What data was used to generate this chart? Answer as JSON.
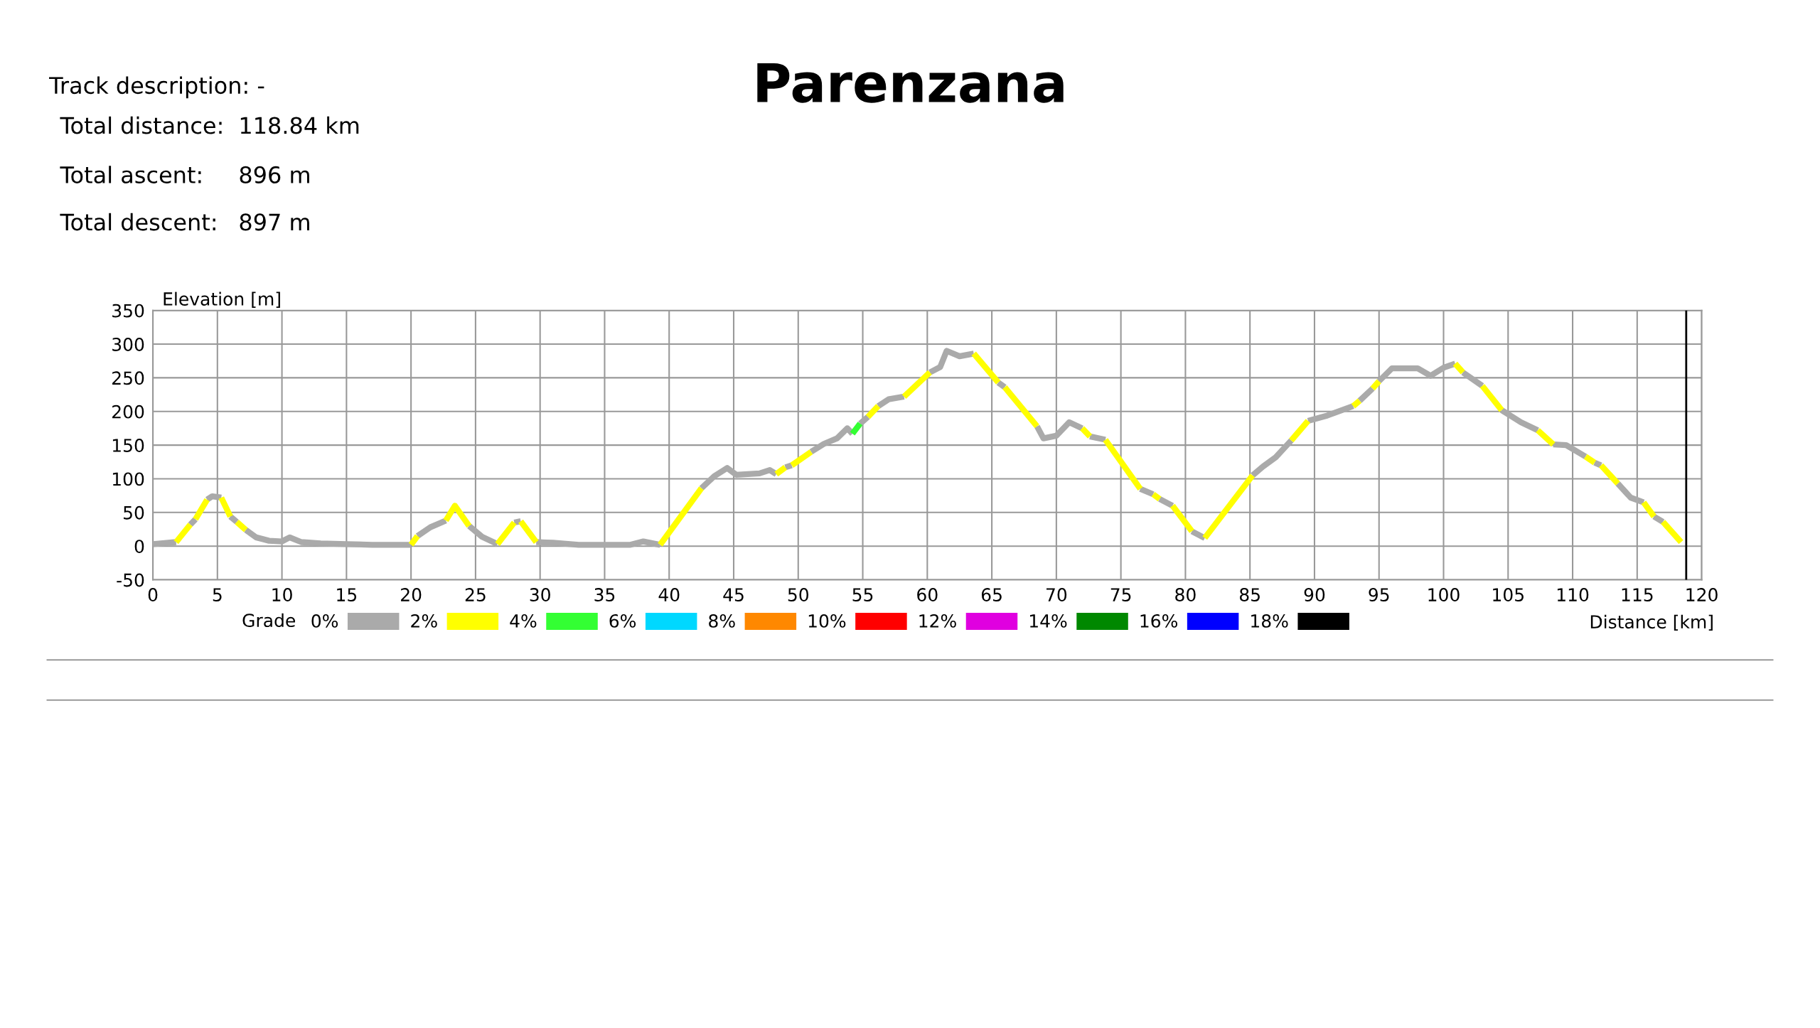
{
  "chart_data": {
    "type": "line",
    "title": "Parenzana",
    "xlabel": "Distance [km]",
    "ylabel": "Elevation [m]",
    "legend_title": "Grade",
    "annotations": [
      "Track description: -",
      "Total distance:",
      "118.84 km",
      "Total ascent:",
      "896 m",
      "Total descent:",
      "897 m"
    ],
    "xlim": [
      0,
      120
    ],
    "xticks": [
      0,
      5,
      10,
      15,
      20,
      25,
      30,
      35,
      40,
      45,
      50,
      55,
      60,
      65,
      70,
      75,
      80,
      85,
      90,
      95,
      100,
      105,
      110,
      115,
      120
    ],
    "ylim": [
      -50,
      350
    ],
    "yticks": [
      -50,
      0,
      50,
      100,
      150,
      200,
      250,
      300,
      350
    ],
    "grid": true,
    "legend": "bottom",
    "line_style": "solid",
    "marker": "none",
    "ref_lines": [
      {
        "axis": "x",
        "value": 118.8,
        "color": "#000000"
      }
    ],
    "series": [
      {
        "name": "0%",
        "color": "#aaaaaa",
        "x": [
          0,
          1.8,
          null,
          2.9,
          3.3,
          null,
          4.2,
          4.6,
          5.3,
          null,
          6.0,
          6.5,
          null,
          7.2,
          8,
          9,
          10,
          10.6,
          11.5,
          13,
          15,
          17,
          20,
          null,
          20.5,
          21.5,
          22.7,
          null,
          24.5,
          25.5,
          26.7,
          null,
          28,
          28.5,
          null,
          29.7,
          31,
          33,
          37,
          38,
          39.3,
          null,
          42.5,
          43.5,
          44.5,
          45.2,
          47,
          47.8,
          48.3,
          null,
          49,
          49.5,
          null,
          51,
          52,
          53,
          53.8,
          54.2,
          null,
          54.8,
          55.4,
          null,
          56.2,
          57,
          58.2,
          null,
          60.2,
          61,
          61.5,
          62.5,
          63.6,
          null,
          65.5,
          66,
          null,
          68.5,
          69,
          70,
          71,
          72,
          null,
          72.6,
          73.8,
          null,
          76.5,
          77.5,
          null,
          78,
          79,
          null,
          80.5,
          81.5,
          null,
          85.2,
          86,
          87,
          88.2,
          null,
          89.5,
          91,
          93,
          null,
          93.5,
          94.5,
          null,
          95,
          96,
          98,
          99,
          100,
          100.9,
          null,
          101.5,
          103,
          null,
          104.5,
          106,
          107.3,
          null,
          108.5,
          109.5,
          111,
          null,
          111.7,
          112.2,
          null,
          113.5,
          114.5,
          115.5,
          null,
          116.3,
          117
        ],
        "values": [
          3,
          6,
          null,
          32,
          40,
          null,
          69,
          74,
          72,
          null,
          44,
          36,
          null,
          24,
          13,
          8,
          7,
          13,
          6,
          4,
          3,
          2,
          2,
          null,
          15,
          28,
          38,
          null,
          30,
          14,
          3,
          null,
          35,
          37,
          null,
          6,
          5,
          2,
          2,
          7,
          2,
          null,
          86,
          104,
          116,
          106,
          108,
          113,
          107,
          null,
          117,
          120,
          null,
          140,
          152,
          160,
          175,
          167,
          null,
          182,
          192,
          null,
          208,
          218,
          222,
          null,
          258,
          266,
          290,
          282,
          286,
          null,
          243,
          236,
          null,
          178,
          160,
          164,
          184,
          175,
          null,
          163,
          158,
          null,
          85,
          77,
          null,
          70,
          60,
          null,
          22,
          12,
          null,
          105,
          118,
          132,
          157,
          null,
          186,
          194,
          208,
          null,
          216,
          234,
          null,
          245,
          264,
          264,
          253,
          265,
          271,
          null,
          258,
          238,
          null,
          202,
          184,
          172,
          null,
          151,
          150,
          133,
          null,
          124,
          120,
          null,
          93,
          72,
          65,
          null,
          44,
          36
        ]
      },
      {
        "name": "2%",
        "color": "#ffff00",
        "x": [
          1.8,
          2.9,
          null,
          3.3,
          4.2,
          null,
          5.3,
          6.0,
          null,
          6.5,
          7.2,
          null,
          20,
          20.5,
          null,
          22.7,
          23.4,
          24.5,
          null,
          26.7,
          28,
          null,
          28.5,
          29.7,
          null,
          39.3,
          42.5,
          null,
          48.3,
          49,
          null,
          49.5,
          51,
          null,
          55.4,
          56.2,
          null,
          58.2,
          60.2,
          null,
          63.6,
          65.5,
          null,
          66,
          68.5,
          null,
          72,
          72.6,
          null,
          73.8,
          76.5,
          null,
          77.5,
          78,
          null,
          79,
          80.5,
          null,
          81.5,
          85.2,
          null,
          88.2,
          89.5,
          null,
          93,
          93.5,
          null,
          94.5,
          95,
          null,
          100.9,
          101.5,
          null,
          103,
          104.5,
          null,
          107.3,
          108.5,
          null,
          111,
          111.7,
          null,
          112.2,
          113.5,
          null,
          115.5,
          116.3,
          null,
          117,
          118.4
        ],
        "values": [
          6,
          32,
          null,
          40,
          69,
          null,
          72,
          44,
          null,
          36,
          24,
          null,
          2,
          15,
          null,
          38,
          60,
          30,
          null,
          3,
          35,
          null,
          37,
          6,
          null,
          2,
          86,
          null,
          107,
          117,
          null,
          120,
          140,
          null,
          192,
          208,
          null,
          222,
          258,
          null,
          286,
          243,
          null,
          236,
          178,
          null,
          175,
          163,
          null,
          158,
          85,
          null,
          77,
          70,
          null,
          60,
          22,
          null,
          12,
          105,
          null,
          157,
          186,
          null,
          208,
          216,
          null,
          234,
          245,
          null,
          271,
          258,
          null,
          238,
          202,
          null,
          172,
          151,
          null,
          133,
          124,
          null,
          120,
          93,
          null,
          65,
          44,
          null,
          36,
          6
        ]
      },
      {
        "name": "4%",
        "color": "#33ff33",
        "x": [
          54.2,
          54.8
        ],
        "values": [
          167,
          182
        ]
      },
      {
        "name": "6%",
        "color": "#00d8ff"
      },
      {
        "name": "8%",
        "color": "#ff8800"
      },
      {
        "name": "10%",
        "color": "#ff0000"
      },
      {
        "name": "12%",
        "color": "#e000e0"
      },
      {
        "name": "14%",
        "color": "#008800"
      },
      {
        "name": "16%",
        "color": "#0000ff"
      },
      {
        "name": "18%",
        "color": "#000000"
      }
    ]
  }
}
